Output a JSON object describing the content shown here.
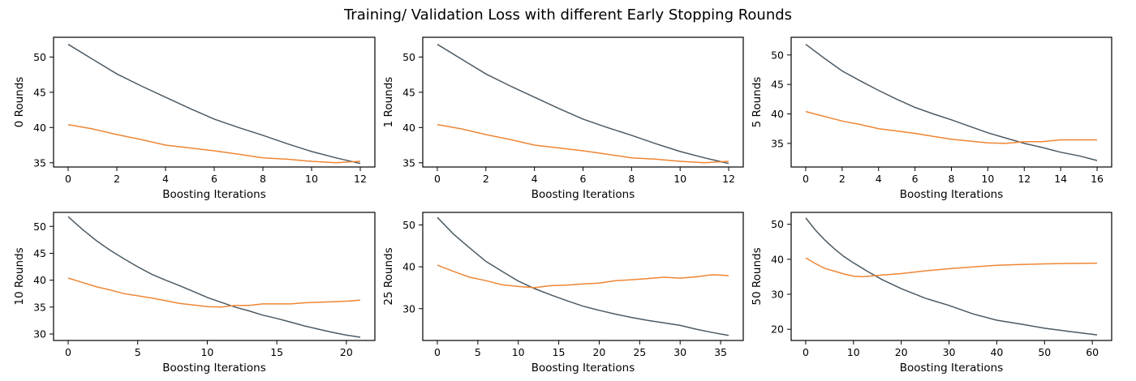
{
  "title": "Training/ Validation Loss with different Early Stopping Rounds",
  "colors": {
    "train": "#4c5a64",
    "validation": "#ee8635"
  },
  "chart_data": [
    {
      "type": "line",
      "xlabel": "Boosting Iterations",
      "ylabel": "0 Rounds",
      "xlim": [
        -0.6,
        12.6
      ],
      "ylim": [
        34.4,
        52.8
      ],
      "xticks": [
        0,
        2,
        4,
        6,
        8,
        10,
        12
      ],
      "yticks": [
        35,
        40,
        45,
        50
      ],
      "series": [
        {
          "values": [
            51.8,
            49.7,
            47.6,
            45.9,
            44.3,
            42.7,
            41.2,
            40.0,
            38.9,
            37.7,
            36.6,
            35.7,
            34.9
          ]
        },
        {
          "values": [
            40.4,
            39.8,
            39.0,
            38.3,
            37.5,
            37.1,
            36.7,
            36.2,
            35.7,
            35.5,
            35.2,
            35.0,
            35.2
          ]
        }
      ]
    },
    {
      "type": "line",
      "xlabel": "Boosting Iterations",
      "ylabel": "1 Rounds",
      "xlim": [
        -0.6,
        12.6
      ],
      "ylim": [
        34.4,
        52.8
      ],
      "xticks": [
        0,
        2,
        4,
        6,
        8,
        10,
        12
      ],
      "yticks": [
        35,
        40,
        45,
        50
      ],
      "series": [
        {
          "values": [
            51.8,
            49.7,
            47.6,
            45.9,
            44.3,
            42.7,
            41.2,
            40.0,
            38.9,
            37.7,
            36.6,
            35.7,
            34.9
          ]
        },
        {
          "values": [
            40.4,
            39.8,
            39.0,
            38.3,
            37.5,
            37.1,
            36.7,
            36.2,
            35.7,
            35.5,
            35.2,
            35.0,
            35.2
          ]
        }
      ]
    },
    {
      "type": "line",
      "xlabel": "Boosting Iterations",
      "ylabel": "5 Rounds",
      "xlim": [
        -0.8,
        16.8
      ],
      "ylim": [
        31.0,
        53.0
      ],
      "xticks": [
        0,
        2,
        4,
        6,
        8,
        10,
        12,
        14,
        16
      ],
      "yticks": [
        35,
        40,
        45,
        50
      ],
      "series": [
        {
          "values": [
            51.8,
            49.5,
            47.3,
            45.6,
            44.0,
            42.5,
            41.1,
            40.0,
            39.0,
            37.9,
            36.8,
            35.9,
            35.0,
            34.3,
            33.5,
            32.9,
            32.1
          ]
        },
        {
          "values": [
            40.4,
            39.6,
            38.8,
            38.2,
            37.5,
            37.1,
            36.7,
            36.2,
            35.7,
            35.4,
            35.1,
            35.0,
            35.3,
            35.3,
            35.6,
            35.6,
            35.6
          ]
        }
      ]
    },
    {
      "type": "line",
      "xlabel": "Boosting Iterations",
      "ylabel": "10 Rounds",
      "xlim": [
        -1.05,
        22.05
      ],
      "ylim": [
        28.8,
        52.6
      ],
      "xticks": [
        0,
        5,
        10,
        15,
        20
      ],
      "yticks": [
        30,
        35,
        40,
        45,
        50
      ],
      "series": [
        {
          "values": [
            51.8,
            49.5,
            47.4,
            45.6,
            44.0,
            42.5,
            41.1,
            40.0,
            39.0,
            37.9,
            36.8,
            35.9,
            35.0,
            34.3,
            33.5,
            32.9,
            32.2,
            31.5,
            30.9,
            30.3,
            29.8,
            29.4
          ]
        },
        {
          "values": [
            40.4,
            39.6,
            38.8,
            38.2,
            37.5,
            37.1,
            36.7,
            36.2,
            35.7,
            35.4,
            35.1,
            35.0,
            35.3,
            35.3,
            35.6,
            35.6,
            35.6,
            35.8,
            35.9,
            36.0,
            36.1,
            36.3
          ]
        }
      ]
    },
    {
      "type": "line",
      "xlabel": "Boosting Iterations",
      "ylabel": "25 Rounds",
      "xlim": [
        -1.8,
        37.8
      ],
      "ylim": [
        22.4,
        53.0
      ],
      "xticks": [
        0,
        5,
        10,
        15,
        20,
        25,
        30,
        35
      ],
      "yticks": [
        30,
        40,
        50
      ],
      "series": [
        {
          "x": [
            0,
            2,
            4,
            6,
            8,
            10,
            12,
            14,
            16,
            18,
            20,
            22,
            24,
            26,
            28,
            30,
            32,
            34,
            36
          ],
          "values": [
            51.8,
            47.8,
            44.5,
            41.3,
            38.9,
            36.6,
            34.8,
            33.3,
            31.9,
            30.6,
            29.6,
            28.7,
            27.9,
            27.2,
            26.6,
            26.0,
            25.1,
            24.3,
            23.6
          ]
        },
        {
          "x": [
            0,
            2,
            4,
            6,
            8,
            10,
            12,
            14,
            16,
            18,
            20,
            22,
            24,
            26,
            28,
            30,
            32,
            34,
            36
          ],
          "values": [
            40.4,
            38.9,
            37.5,
            36.7,
            35.7,
            35.3,
            35.0,
            35.5,
            35.6,
            35.9,
            36.1,
            36.7,
            36.9,
            37.2,
            37.5,
            37.3,
            37.6,
            38.1,
            37.9
          ]
        }
      ]
    },
    {
      "type": "line",
      "xlabel": "Boosting Iterations",
      "ylabel": "50 Rounds",
      "xlim": [
        -3.05,
        64.05
      ],
      "ylim": [
        16.8,
        53.4
      ],
      "xticks": [
        0,
        10,
        20,
        30,
        40,
        50,
        60
      ],
      "yticks": [
        20,
        30,
        40,
        50
      ],
      "series": [
        {
          "x": [
            0,
            2,
            4,
            6,
            8,
            10,
            13,
            16,
            20,
            25,
            30,
            35,
            40,
            45,
            50,
            55,
            61
          ],
          "values": [
            51.8,
            48.4,
            45.5,
            43.0,
            40.8,
            39.0,
            36.5,
            34.2,
            31.6,
            28.9,
            26.8,
            24.4,
            22.6,
            21.5,
            20.3,
            19.4,
            18.4
          ]
        },
        {
          "x": [
            0,
            2,
            4,
            6,
            8,
            10,
            12,
            15,
            20,
            25,
            30,
            35,
            40,
            45,
            50,
            55,
            61
          ],
          "values": [
            40.4,
            38.8,
            37.4,
            36.6,
            35.8,
            35.2,
            35.0,
            35.4,
            35.9,
            36.7,
            37.3,
            37.8,
            38.3,
            38.5,
            38.7,
            38.8,
            38.9
          ]
        }
      ]
    }
  ]
}
